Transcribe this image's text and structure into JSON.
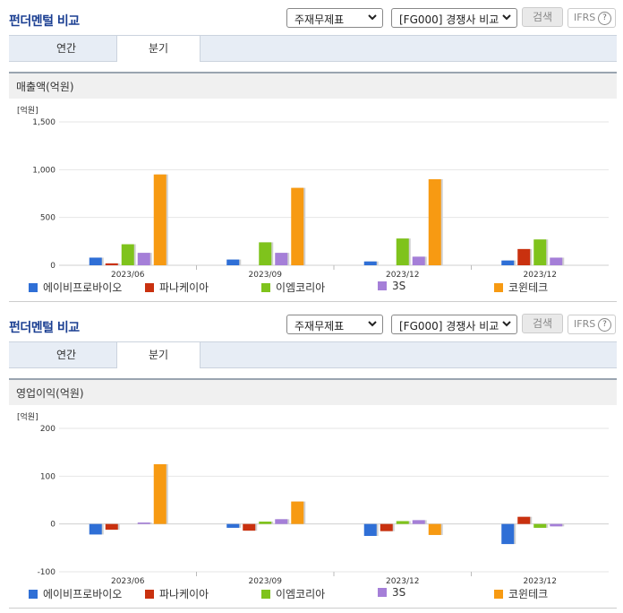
{
  "panels": [
    {
      "title": "펀더멘털 비교",
      "select_statement": "주재무제표",
      "select_compare": "[FG000] 경쟁사 비교",
      "search_label": "검색",
      "ifrs_label": "IFRS",
      "help_label": "?",
      "tabs": [
        "연간",
        "분기"
      ],
      "active_tab": 1,
      "subtitle": "매출액(억원)",
      "unit_label": "[억원]"
    },
    {
      "title": "펀더멘털 비교",
      "select_statement": "주재무제표",
      "select_compare": "[FG000] 경쟁사 비교",
      "search_label": "검색",
      "ifrs_label": "IFRS",
      "help_label": "?",
      "tabs": [
        "연간",
        "분기"
      ],
      "active_tab": 1,
      "subtitle": "영업이익(억원)",
      "unit_label": "[억원]"
    }
  ],
  "chart_data": [
    {
      "type": "bar",
      "title": "매출액(억원)",
      "ylabel": "[억원]",
      "categories": [
        "2023/06",
        "2023/09",
        "2023/12",
        "2023/12"
      ],
      "ylim": [
        0,
        1500
      ],
      "yticks": [
        0,
        500,
        1000,
        1500
      ],
      "ytick_labels": [
        "0",
        "500",
        "1,000",
        "1,500"
      ],
      "grid": true,
      "legend": "bottom",
      "series": [
        {
          "name": "에이비프로바이오",
          "color": "#2f6fd6",
          "values": [
            80,
            60,
            40,
            50
          ]
        },
        {
          "name": "파나케이아",
          "color": "#c9310f",
          "values": [
            20,
            null,
            null,
            170
          ]
        },
        {
          "name": "이엠코리아",
          "color": "#7fc31c",
          "values": [
            220,
            240,
            280,
            270
          ]
        },
        {
          "name": "3S",
          "color": "#a57fd8",
          "values": [
            130,
            130,
            90,
            80
          ]
        },
        {
          "name": "코윈테크",
          "color": "#f79a12",
          "values": [
            950,
            810,
            900,
            null
          ]
        }
      ]
    },
    {
      "type": "bar",
      "title": "영업이익(억원)",
      "ylabel": "[억원]",
      "categories": [
        "2023/06",
        "2023/09",
        "2023/12",
        "2023/12"
      ],
      "ylim": [
        -100,
        200
      ],
      "yticks": [
        -100,
        0,
        100,
        200
      ],
      "ytick_labels": [
        "-100",
        "0",
        "100",
        "200"
      ],
      "grid": true,
      "legend": "bottom",
      "series": [
        {
          "name": "에이비프로바이오",
          "color": "#2f6fd6",
          "values": [
            -22,
            -8,
            -25,
            -42
          ]
        },
        {
          "name": "파나케이아",
          "color": "#c9310f",
          "values": [
            -12,
            -14,
            -15,
            15
          ]
        },
        {
          "name": "이엠코리아",
          "color": "#7fc31c",
          "values": [
            null,
            5,
            6,
            -8
          ]
        },
        {
          "name": "3S",
          "color": "#a57fd8",
          "values": [
            3,
            10,
            8,
            -5
          ]
        },
        {
          "name": "코윈테크",
          "color": "#f79a12",
          "values": [
            125,
            47,
            -23,
            null
          ]
        }
      ]
    }
  ]
}
